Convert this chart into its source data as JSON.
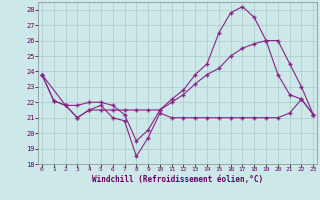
{
  "xlabel": "Windchill (Refroidissement éolien,°C)",
  "bg_color": "#cce8e8",
  "line_color": "#882288",
  "grid_color": "#aacccc",
  "xlim_min": 0,
  "xlim_max": 23,
  "ylim_min": 18,
  "ylim_max": 28.5,
  "yticks": [
    18,
    19,
    20,
    21,
    22,
    23,
    24,
    25,
    26,
    27,
    28
  ],
  "xticks": [
    0,
    1,
    2,
    3,
    4,
    5,
    6,
    7,
    8,
    9,
    10,
    11,
    12,
    13,
    14,
    15,
    16,
    17,
    18,
    19,
    20,
    21,
    22,
    23
  ],
  "series1_x": [
    0,
    1,
    2,
    3,
    4,
    5,
    6,
    7,
    8,
    9,
    10,
    11,
    12,
    13,
    14,
    15,
    16,
    17,
    18,
    19,
    20,
    21,
    22,
    23
  ],
  "series1_y": [
    23.8,
    22.1,
    21.8,
    21.0,
    21.5,
    21.8,
    21.0,
    20.8,
    18.5,
    19.7,
    21.3,
    21.0,
    21.0,
    21.0,
    21.0,
    21.0,
    21.0,
    21.0,
    21.0,
    21.0,
    21.0,
    21.3,
    22.2,
    21.2
  ],
  "series2_x": [
    0,
    1,
    2,
    3,
    4,
    5,
    6,
    7,
    8,
    9,
    10,
    11,
    12,
    13,
    14,
    15,
    16,
    17,
    18,
    19,
    20,
    21,
    22,
    23
  ],
  "series2_y": [
    23.8,
    22.1,
    21.8,
    21.8,
    22.0,
    22.0,
    21.8,
    21.2,
    19.5,
    20.2,
    21.5,
    22.2,
    22.8,
    23.8,
    24.5,
    26.5,
    27.8,
    28.2,
    27.5,
    26.0,
    23.8,
    22.5,
    22.2,
    21.2
  ],
  "series3_x": [
    0,
    2,
    3,
    4,
    5,
    6,
    7,
    8,
    9,
    10,
    11,
    12,
    13,
    14,
    15,
    16,
    17,
    18,
    19,
    20,
    21,
    22,
    23
  ],
  "series3_y": [
    23.8,
    21.8,
    21.0,
    21.5,
    21.5,
    21.5,
    21.5,
    21.5,
    21.5,
    21.5,
    22.0,
    22.5,
    23.2,
    23.8,
    24.2,
    25.0,
    25.5,
    25.8,
    26.0,
    26.0,
    24.5,
    23.0,
    21.2
  ]
}
